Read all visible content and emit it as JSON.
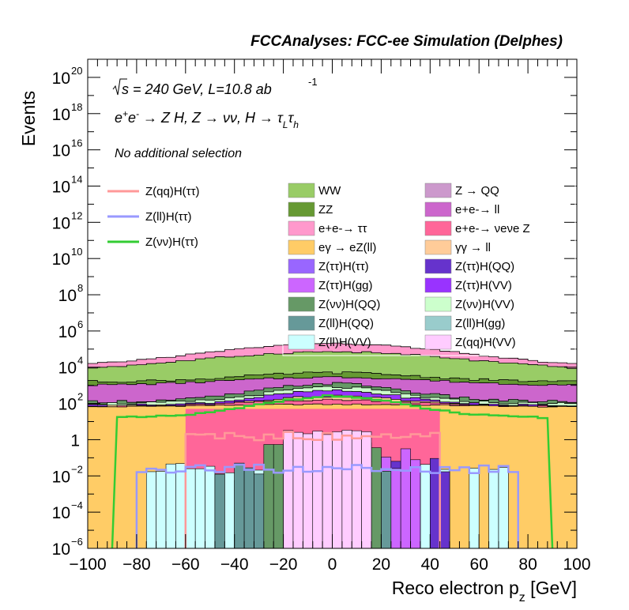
{
  "chart_data": {
    "type": "histogram",
    "title": "FCCAnalyses: FCC-ee Simulation (Delphes)",
    "xlabel": "Reco electron p_z [GeV]",
    "ylabel": "Events",
    "xlim": [
      -100,
      100
    ],
    "ylim": [
      1e-06,
      1e+21
    ],
    "yscale": "log",
    "x_ticks": [
      "−100",
      "−80",
      "−60",
      "−40",
      "−20",
      "0",
      "20",
      "40",
      "60",
      "80",
      "100"
    ],
    "y_ticks": [
      {
        "base": "10",
        "exp": "−6"
      },
      {
        "base": "10",
        "exp": "−4"
      },
      {
        "base": "10",
        "exp": "−2"
      },
      {
        "base": "1",
        "exp": ""
      },
      {
        "base": "10",
        "exp": "2"
      },
      {
        "base": "10",
        "exp": "4"
      },
      {
        "base": "10",
        "exp": "6"
      },
      {
        "base": "10",
        "exp": "8"
      },
      {
        "base": "10",
        "exp": "10"
      },
      {
        "base": "10",
        "exp": "12"
      },
      {
        "base": "10",
        "exp": "14"
      },
      {
        "base": "10",
        "exp": "16"
      },
      {
        "base": "10",
        "exp": "18"
      },
      {
        "base": "10",
        "exp": "20"
      }
    ],
    "annotations": {
      "energy": "s = 240 GeV, L=10.8 ab",
      "energy_exp": "-1",
      "process": "e+e- → Z H, Z → νν, H → τLτh",
      "selection": "No additional selection"
    },
    "stacked_backgrounds": [
      {
        "name": "WW",
        "color": "#99cc66"
      },
      {
        "name": "Z → QQ",
        "color": "#cc99cc"
      },
      {
        "name": "ZZ",
        "color": "#669933"
      },
      {
        "name": "e+e-→ ll",
        "color": "#cc66cc"
      },
      {
        "name": "e+e-→ ττ",
        "color": "#ff99cc"
      },
      {
        "name": "e+e-→ νeνe Z",
        "color": "#ff6699"
      },
      {
        "name": "eγ → eZ(ll)",
        "color": "#ffcc66"
      },
      {
        "name": "γγ → ll",
        "color": "#ffcc99"
      },
      {
        "name": "Z(ττ)H(ττ)",
        "color": "#9966ff"
      },
      {
        "name": "Z(ττ)H(QQ)",
        "color": "#6633cc"
      },
      {
        "name": "Z(ττ)H(gg)",
        "color": "#cc66ff"
      },
      {
        "name": "Z(ττ)H(VV)",
        "color": "#9933ff"
      },
      {
        "name": "Z(νν)H(QQ)",
        "color": "#669966"
      },
      {
        "name": "Z(νν)H(VV)",
        "color": "#ccffcc"
      },
      {
        "name": "Z(ll)H(QQ)",
        "color": "#669999"
      },
      {
        "name": "Z(ll)H(gg)",
        "color": "#99cccc"
      },
      {
        "name": "Z(ll)H(VV)",
        "color": "#ccffff"
      },
      {
        "name": "Z(qq)H(VV)",
        "color": "#ffccff"
      }
    ],
    "approx_stack_levels_log10": [
      {
        "name": "total_top",
        "values_at_x": {
          "x": [
            -100,
            -50,
            0,
            50,
            100
          ],
          "log10_y": [
            3.9,
            4.8,
            5.3,
            4.8,
            3.9
          ]
        }
      },
      {
        "name": "ee_ll_top",
        "values_at_x": {
          "x": [
            -100,
            -50,
            0,
            50,
            100
          ],
          "log10_y": [
            3.0,
            3.3,
            3.6,
            3.3,
            3.0
          ]
        }
      },
      {
        "name": "enuenuZ_top",
        "values_at_x": {
          "x": [
            -100,
            -50,
            0,
            50,
            100
          ],
          "log10_y": [
            1.8,
            2.0,
            2.4,
            2.0,
            1.8
          ]
        }
      }
    ],
    "signal_lines": [
      {
        "name": "Z(qq)H(ττ)",
        "color": "#ff9999",
        "support": [
          -60,
          44
        ],
        "approx_log10_y": 0.2
      },
      {
        "name": "Z(ll)H(ττ)",
        "color": "#9999ff",
        "support": [
          -80,
          76
        ],
        "approx_log10_y": -1.6
      },
      {
        "name": "Z(νν)H(ττ)",
        "color": "#33cc33",
        "support": [
          -90,
          90
        ],
        "approx_log10_y": 2.0
      }
    ]
  }
}
